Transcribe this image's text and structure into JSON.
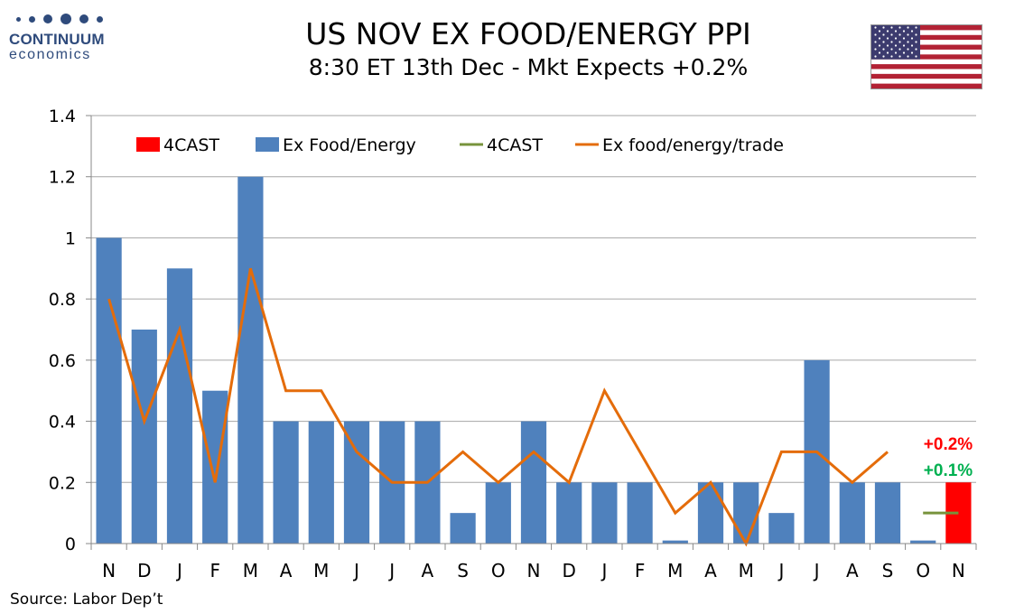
{
  "brand": {
    "name": "CONTINUUM",
    "sub": "economics",
    "color": "#2f4b7c"
  },
  "header": {
    "title": "US NOV EX FOOD/ENERGY PPI",
    "subtitle": "8:30 ET 13th Dec - Mkt Expects +0.2%"
  },
  "flag": {
    "icon": "us-flag-icon"
  },
  "footer": {
    "source": "Source: Labor Dep’t"
  },
  "chart_data": {
    "type": "bar",
    "categories": [
      "N",
      "D",
      "J",
      "F",
      "M",
      "A",
      "M",
      "J",
      "J",
      "A",
      "S",
      "O",
      "N",
      "D",
      "J",
      "F",
      "M",
      "A",
      "M",
      "J",
      "J",
      "A",
      "S",
      "O",
      "N"
    ],
    "ylim": [
      0,
      1.4
    ],
    "yticks": [
      "0",
      "0.2",
      "0.4",
      "0.6",
      "0.8",
      "1",
      "1.2",
      "1.4"
    ],
    "grid": true,
    "legend_position": "top",
    "series": [
      {
        "name": "4CAST",
        "kind": "bar",
        "color": "#ff0000",
        "values": [
          null,
          null,
          null,
          null,
          null,
          null,
          null,
          null,
          null,
          null,
          null,
          null,
          null,
          null,
          null,
          null,
          null,
          null,
          null,
          null,
          null,
          null,
          null,
          null,
          0.2
        ]
      },
      {
        "name": "Ex Food/Energy",
        "kind": "bar",
        "color": "#4f81bd",
        "values": [
          1.0,
          0.7,
          0.9,
          0.5,
          1.2,
          0.4,
          0.4,
          0.4,
          0.4,
          0.4,
          0.1,
          0.2,
          0.4,
          0.2,
          0.2,
          0.2,
          0.01,
          0.2,
          0.2,
          0.1,
          0.6,
          0.2,
          0.2,
          0.01,
          null
        ]
      },
      {
        "name": "4CAST",
        "kind": "line",
        "color": "#77933c",
        "values": [
          null,
          null,
          null,
          null,
          null,
          null,
          null,
          null,
          null,
          null,
          null,
          null,
          null,
          null,
          null,
          null,
          null,
          null,
          null,
          null,
          null,
          null,
          null,
          0.1,
          0.1
        ]
      },
      {
        "name": "Ex food/energy/trade",
        "kind": "line",
        "color": "#e46c0a",
        "values": [
          0.8,
          0.4,
          0.7,
          0.2,
          0.9,
          0.5,
          0.5,
          0.3,
          0.2,
          0.2,
          0.3,
          0.2,
          0.3,
          0.2,
          0.5,
          0.3,
          0.1,
          0.2,
          0.0,
          0.3,
          0.3,
          0.2,
          0.3,
          null,
          null
        ]
      }
    ],
    "annotations": [
      {
        "text": "+0.2%",
        "color": "#ff0000"
      },
      {
        "text": "+0.1%",
        "color": "#00b050"
      }
    ]
  }
}
